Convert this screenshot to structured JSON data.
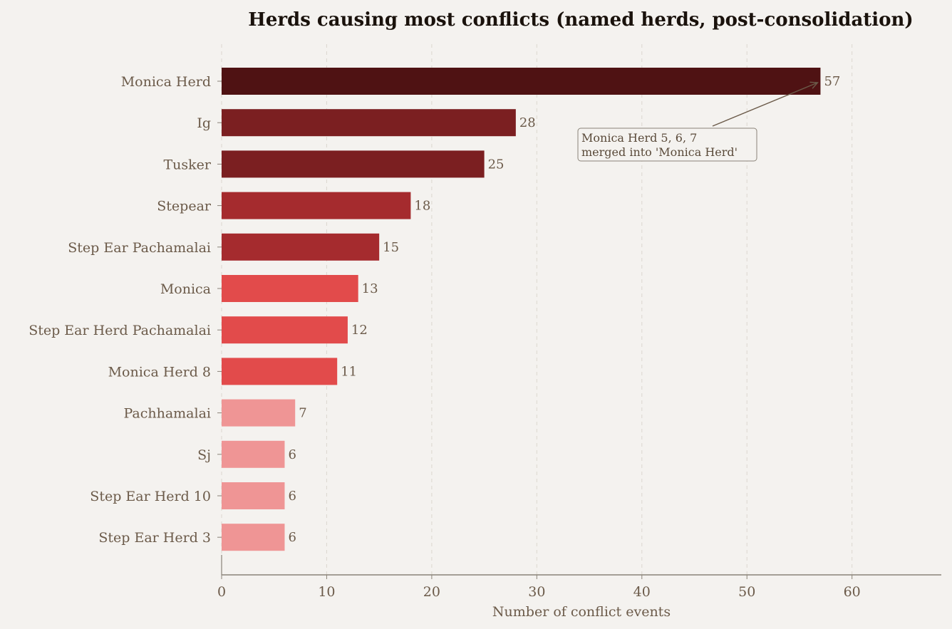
{
  "chart_data": {
    "type": "bar",
    "orientation": "horizontal",
    "title": "Herds causing most conflicts (named herds, post-consolidation)",
    "xlabel": "Number of conflict events",
    "ylabel": "",
    "xlim": [
      0,
      68.5
    ],
    "xticks": [
      0,
      10,
      20,
      30,
      40,
      50,
      60
    ],
    "grid": "x, dashed",
    "categories": [
      "Monica Herd",
      "Ig",
      "Tusker",
      "Stepear",
      "Step Ear Pachamalai",
      "Monica",
      "Step Ear Herd Pachamalai",
      "Monica Herd 8",
      "Pachhamalai",
      "Sj",
      "Step Ear Herd 10",
      "Step Ear Herd 3"
    ],
    "values": [
      57,
      28,
      25,
      18,
      15,
      13,
      12,
      11,
      7,
      6,
      6,
      6
    ],
    "bar_colors": [
      "#4f1213",
      "#7b1f21",
      "#7b1f21",
      "#a52b2e",
      "#a52b2e",
      "#e24b4b",
      "#e24b4b",
      "#e24b4b",
      "#ef9595",
      "#ef9595",
      "#ef9595",
      "#ef9595"
    ],
    "annotation": {
      "lines": [
        "Monica Herd 5, 6, 7",
        "merged into 'Monica Herd'"
      ],
      "target_category": "Monica Herd"
    }
  }
}
